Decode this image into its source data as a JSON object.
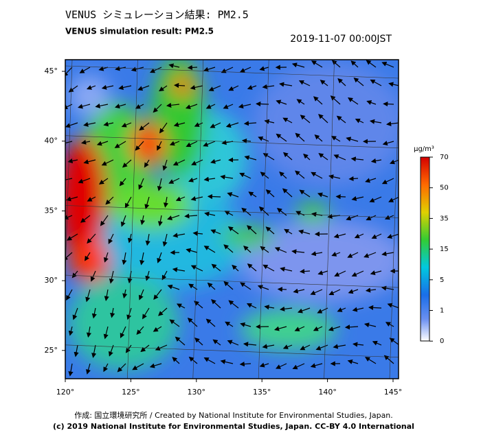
{
  "header": {
    "title_ja": "VENUS シミュレーション結果: PM2.5",
    "title_en": "VENUS simulation result: PM2.5",
    "timestamp": "2019-11-07 00:00JST"
  },
  "map": {
    "lon_ticks": [
      "120°",
      "125°",
      "130°",
      "135°",
      "140°",
      "145°"
    ],
    "lat_ticks": [
      "45°",
      "40°",
      "35°",
      "30°",
      "25°"
    ]
  },
  "colorbar": {
    "unit": "μg/m³",
    "ticks": [
      "70",
      "50",
      "35",
      "15",
      "5",
      "1",
      "0"
    ]
  },
  "footer": {
    "credit": "作成: 国立環境研究所 / Created by National Institute for Environmental Studies, Japan.",
    "copyright": "(c) 2019 National Institute for Environmental Studies, Japan. CC-BY 4.0 International"
  }
}
